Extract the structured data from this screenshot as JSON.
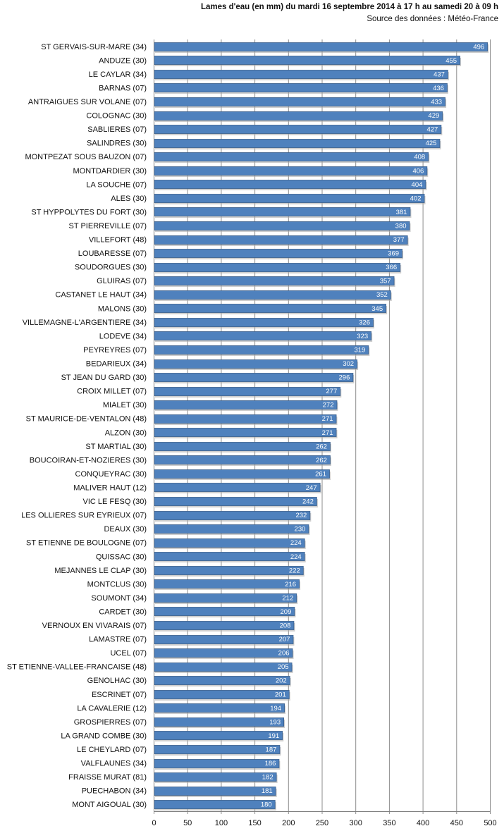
{
  "chart_data": {
    "type": "bar",
    "orientation": "horizontal",
    "title": "Lames d'eau (en mm) du mardi 16 septembre 2014 à 17 h au samedi 20 à 09 h",
    "subtitle": "Source des données : Météo-France",
    "categories": [
      "ST GERVAIS-SUR-MARE  (34)",
      "ANDUZE (30)",
      "LE CAYLAR (34)",
      "BARNAS (07)",
      "ANTRAIGUES SUR VOLANE (07)",
      "COLOGNAC (30)",
      "SABLIERES (07)",
      "SALINDRES (30)",
      "MONTPEZAT SOUS BAUZON (07)",
      "MONTDARDIER (30)",
      "LA SOUCHE (07)",
      "ALES (30)",
      "ST HYPPOLYTES DU FORT (30)",
      "ST PIERREVILLE (07)",
      "VILLEFORT (48)",
      "LOUBARESSE (07)",
      "SOUDORGUES (30)",
      "GLUIRAS (07)",
      "CASTANET LE HAUT (34)",
      "MALONS (30)",
      "VILLEMAGNE-L'ARGENTIERE  (34)",
      "LODEVE (34)",
      "PEYREYRES (07)",
      "BEDARIEUX (34)",
      "ST JEAN DU GARD (30)",
      "CROIX MILLET (07)",
      "MIALET (30)",
      "ST MAURICE-DE-VENTALON  (48)",
      "ALZON (30)",
      "ST MARTIAL (30)",
      "BOUCOIRAN-ET-NOZIERES  (30)",
      "CONQUEYRAC (30)",
      "MALIVER HAUT (12)",
      "VIC LE FESQ (30)",
      "LES OLLIERES SUR EYRIEUX  (07)",
      "DEAUX (30)",
      "ST ETIENNE  DE BOULOGNE (07)",
      "QUISSAC (30)",
      "MEJANNES  LE CLAP (30)",
      "MONTCLUS (30)",
      "SOUMONT (34)",
      "CARDET (30)",
      "VERNOUX EN VIVARAIS (07)",
      "LAMASTRE (07)",
      "UCEL (07)",
      "ST ETIENNE-VALLEE-FRANCAISE  (48)",
      "GENOLHAC (30)",
      "ESCRINET (07)",
      "LA CAVALERIE (12)",
      "GROSPIERRES (07)",
      "LA GRAND COMBE (30)",
      "LE CHEYLARD (07)",
      "VALFLAUNES (34)",
      "FRAISSE MURAT (81)",
      "PUECHABON (34)",
      "MONT AIGOUAL (30)"
    ],
    "values": [
      496,
      455,
      437,
      436,
      433,
      429,
      427,
      425,
      408,
      406,
      404,
      402,
      381,
      380,
      377,
      369,
      366,
      357,
      352,
      345,
      326,
      323,
      319,
      302,
      296,
      277,
      272,
      271,
      271,
      262,
      262,
      261,
      247,
      242,
      232,
      230,
      224,
      224,
      222,
      216,
      212,
      209,
      208,
      207,
      206,
      205,
      202,
      201,
      194,
      193,
      191,
      187,
      186,
      182,
      181,
      180
    ],
    "xticks": [
      0,
      50,
      100,
      150,
      200,
      250,
      300,
      350,
      400,
      450,
      500
    ],
    "xlim": [
      0,
      500
    ],
    "grid": "vertical",
    "legend": "none",
    "colors": {
      "bar": "#4f81bd",
      "bar_edge": "#385d8a",
      "shadow": "#a6a6a6",
      "grid": "#8c8c8c"
    }
  }
}
